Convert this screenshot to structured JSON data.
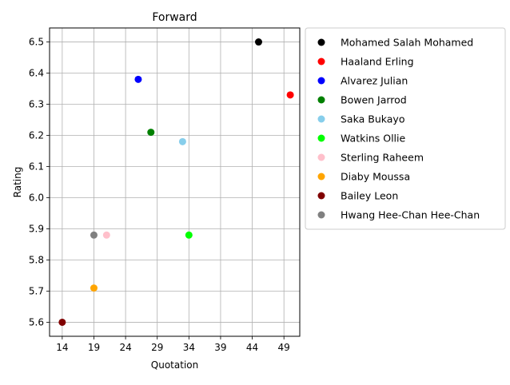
{
  "chart_data": {
    "type": "scatter",
    "title": "Forward",
    "xlabel": "Quotation",
    "ylabel": "Rating",
    "xlim": [
      12,
      51.5
    ],
    "ylim": [
      5.555,
      6.545
    ],
    "xticks": [
      14,
      19,
      24,
      29,
      34,
      39,
      44,
      49
    ],
    "yticks": [
      5.6,
      5.7,
      5.8,
      5.9,
      6.0,
      6.1,
      6.2,
      6.3,
      6.4,
      6.5
    ],
    "ytick_labels": [
      "5.6",
      "5.7",
      "5.8",
      "5.9",
      "6.0",
      "6.1",
      "6.2",
      "6.3",
      "6.4",
      "6.5"
    ],
    "grid": true,
    "legend_position": "outside-right-top",
    "series": [
      {
        "name": "Mohamed Salah Mohamed",
        "color": "#000000",
        "x": 45,
        "y": 6.5
      },
      {
        "name": "Haaland Erling",
        "color": "#ff0000",
        "x": 50,
        "y": 6.33
      },
      {
        "name": "Alvarez Julian",
        "color": "#0000ff",
        "x": 26,
        "y": 6.38
      },
      {
        "name": "Bowen Jarrod",
        "color": "#008000",
        "x": 28,
        "y": 6.21
      },
      {
        "name": "Saka Bukayo",
        "color": "#87ceeb",
        "x": 33,
        "y": 6.18
      },
      {
        "name": "Watkins Ollie",
        "color": "#00ff00",
        "x": 34,
        "y": 5.88
      },
      {
        "name": "Sterling Raheem",
        "color": "#ffc0cb",
        "x": 21,
        "y": 5.88
      },
      {
        "name": "Diaby Moussa",
        "color": "#ffa500",
        "x": 19,
        "y": 5.71
      },
      {
        "name": "Bailey Leon",
        "color": "#800000",
        "x": 14,
        "y": 5.6
      },
      {
        "name": "Hwang Hee-Chan Hee-Chan",
        "color": "#808080",
        "x": 19,
        "y": 5.88
      }
    ]
  }
}
